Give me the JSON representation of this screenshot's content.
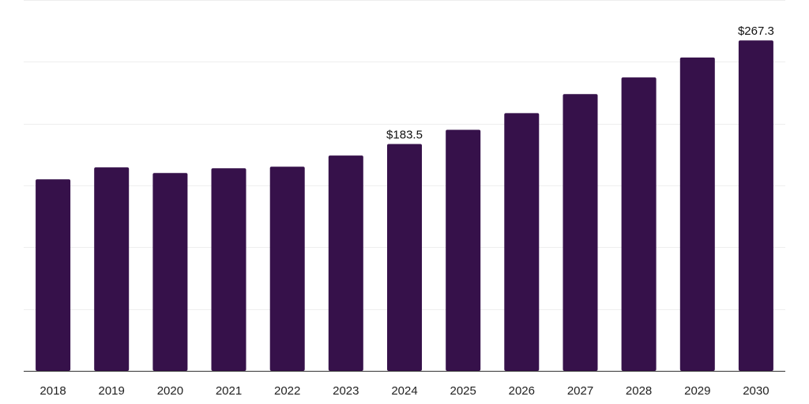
{
  "chart_data": {
    "type": "bar",
    "categories": [
      "2018",
      "2019",
      "2020",
      "2021",
      "2022",
      "2023",
      "2024",
      "2025",
      "2026",
      "2027",
      "2028",
      "2029",
      "2030"
    ],
    "values": [
      155,
      164.6,
      160.1,
      163.9,
      165.2,
      174.2,
      183.5,
      195,
      208.5,
      223.9,
      237.4,
      253.5,
      267.3
    ],
    "data_labels": {
      "2024": "$183.5",
      "2030": "$267.3"
    },
    "ylim": [
      0,
      300
    ],
    "grid": true,
    "bar_color": "#36114a",
    "grid_color": "#eeeeee",
    "axis_color": "#333333"
  }
}
